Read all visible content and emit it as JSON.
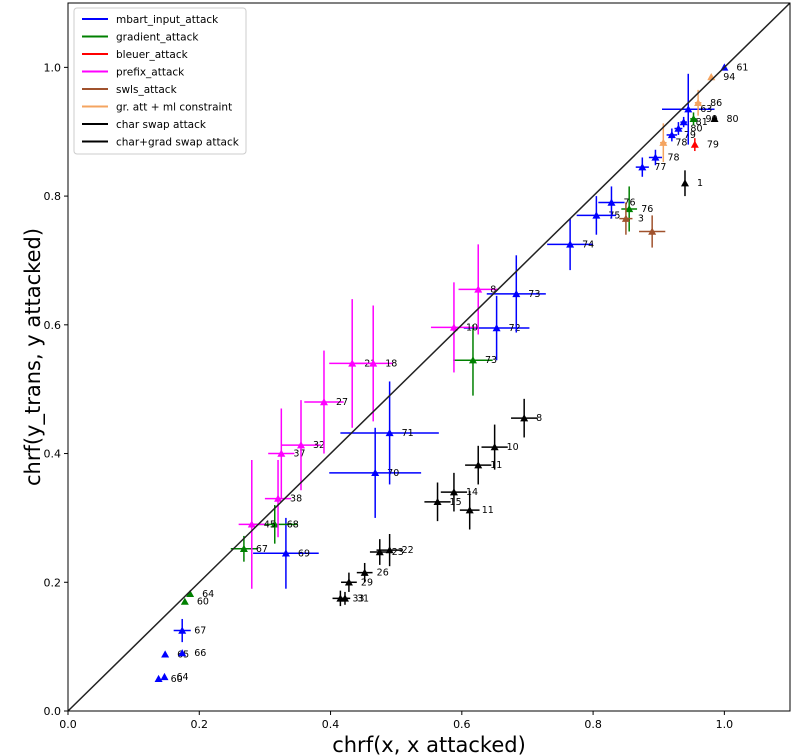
{
  "chart_data": {
    "type": "scatter",
    "title": "",
    "xlabel": "chrf(x, x attacked)",
    "ylabel": "chrf(y_trans, y attacked)",
    "xlim": [
      0.0,
      1.1
    ],
    "ylim": [
      0.0,
      1.1
    ],
    "xticks": [
      0.0,
      0.2,
      0.4,
      0.6,
      0.8,
      1.0
    ],
    "yticks": [
      0.0,
      0.2,
      0.4,
      0.6,
      0.8,
      1.0
    ],
    "xtick_labels": [
      "0.0",
      "0.2",
      "0.4",
      "0.6",
      "0.8",
      "1.0"
    ],
    "ytick_labels": [
      "0.0",
      "0.2",
      "0.4",
      "0.6",
      "0.8",
      "1.0"
    ],
    "diagonal": {
      "from": [
        0,
        0
      ],
      "to": [
        1.1,
        1.1
      ],
      "color": "#222222"
    },
    "legend_position": "top-left",
    "series": [
      {
        "name": "mbart_input_attack",
        "color": "#0000ff",
        "points": [
          {
            "x": 0.138,
            "y": 0.05,
            "xerr": 0.0,
            "yerr": 0.0,
            "label": "60"
          },
          {
            "x": 0.147,
            "y": 0.053,
            "xerr": 0.0,
            "yerr": 0.0,
            "label": "64"
          },
          {
            "x": 0.148,
            "y": 0.088,
            "xerr": 0.0,
            "yerr": 0.0,
            "label": "65"
          },
          {
            "x": 0.174,
            "y": 0.09,
            "xerr": 0.0,
            "yerr": 0.0,
            "label": "66"
          },
          {
            "x": 0.174,
            "y": 0.125,
            "xerr": 0.013,
            "yerr": 0.018,
            "label": "67"
          },
          {
            "x": 0.332,
            "y": 0.245,
            "xerr": 0.05,
            "yerr": 0.055,
            "label": "69"
          },
          {
            "x": 0.468,
            "y": 0.37,
            "xerr": 0.07,
            "yerr": 0.07,
            "label": "70"
          },
          {
            "x": 0.49,
            "y": 0.432,
            "xerr": 0.075,
            "yerr": 0.08,
            "label": "71"
          },
          {
            "x": 0.653,
            "y": 0.595,
            "xerr": 0.05,
            "yerr": 0.05,
            "label": "72"
          },
          {
            "x": 0.683,
            "y": 0.648,
            "xerr": 0.045,
            "yerr": 0.06,
            "label": "73"
          },
          {
            "x": 0.765,
            "y": 0.725,
            "xerr": 0.035,
            "yerr": 0.04,
            "label": "74"
          },
          {
            "x": 0.805,
            "y": 0.77,
            "xerr": 0.03,
            "yerr": 0.03,
            "label": "75"
          },
          {
            "x": 0.828,
            "y": 0.79,
            "xerr": 0.02,
            "yerr": 0.025,
            "label": "76"
          },
          {
            "x": 0.875,
            "y": 0.845,
            "xerr": 0.01,
            "yerr": 0.015,
            "label": "77"
          },
          {
            "x": 0.895,
            "y": 0.86,
            "xerr": 0.01,
            "yerr": 0.012,
            "label": "78"
          },
          {
            "x": 0.92,
            "y": 0.895,
            "xerr": 0.008,
            "yerr": 0.01,
            "label": "79"
          },
          {
            "x": 0.93,
            "y": 0.905,
            "xerr": 0.006,
            "yerr": 0.01,
            "label": "80"
          },
          {
            "x": 0.938,
            "y": 0.915,
            "xerr": 0.005,
            "yerr": 0.008,
            "label": "81"
          },
          {
            "x": 0.945,
            "y": 0.935,
            "xerr": 0.04,
            "yerr": 0.055,
            "label": "63"
          },
          {
            "x": 1.0,
            "y": 1.0,
            "xerr": 0.0,
            "yerr": 0.0,
            "label": "61"
          }
        ]
      },
      {
        "name": "gradient_attack",
        "color": "#008000",
        "points": [
          {
            "x": 0.178,
            "y": 0.17,
            "xerr": 0.0,
            "yerr": 0.0,
            "label": "60"
          },
          {
            "x": 0.186,
            "y": 0.182,
            "xerr": 0.0,
            "yerr": 0.0,
            "label": "64"
          },
          {
            "x": 0.268,
            "y": 0.252,
            "xerr": 0.02,
            "yerr": 0.02,
            "label": "67"
          },
          {
            "x": 0.315,
            "y": 0.29,
            "xerr": 0.035,
            "yerr": 0.03,
            "label": "68"
          },
          {
            "x": 0.617,
            "y": 0.545,
            "xerr": 0.03,
            "yerr": 0.055,
            "label": "73"
          },
          {
            "x": 0.855,
            "y": 0.78,
            "xerr": 0.012,
            "yerr": 0.035,
            "label": "76"
          },
          {
            "x": 0.953,
            "y": 0.92,
            "xerr": 0.005,
            "yerr": 0.01,
            "label": "90"
          }
        ]
      },
      {
        "name": "bleuer_attack",
        "color": "#ff0000",
        "points": [
          {
            "x": 0.955,
            "y": 0.88,
            "xerr": 0.0,
            "yerr": 0.01,
            "label": "79"
          }
        ]
      },
      {
        "name": "prefix_attack",
        "color": "#ff00ff",
        "points": [
          {
            "x": 0.28,
            "y": 0.29,
            "xerr": 0.02,
            "yerr": 0.1,
            "label": "45"
          },
          {
            "x": 0.32,
            "y": 0.33,
            "xerr": 0.02,
            "yerr": 0.06,
            "label": "38"
          },
          {
            "x": 0.325,
            "y": 0.4,
            "xerr": 0.02,
            "yerr": 0.07,
            "label": "37"
          },
          {
            "x": 0.355,
            "y": 0.413,
            "xerr": 0.03,
            "yerr": 0.07,
            "label": "32"
          },
          {
            "x": 0.39,
            "y": 0.48,
            "xerr": 0.03,
            "yerr": 0.08,
            "label": "27"
          },
          {
            "x": 0.433,
            "y": 0.54,
            "xerr": 0.035,
            "yerr": 0.1,
            "label": "21"
          },
          {
            "x": 0.465,
            "y": 0.54,
            "xerr": 0.03,
            "yerr": 0.09,
            "label": "18"
          },
          {
            "x": 0.588,
            "y": 0.596,
            "xerr": 0.035,
            "yerr": 0.07,
            "label": "10"
          },
          {
            "x": 0.625,
            "y": 0.655,
            "xerr": 0.03,
            "yerr": 0.07,
            "label": "8"
          }
        ]
      },
      {
        "name": "swls_attack",
        "color": "#a0522d",
        "points": [
          {
            "x": 0.85,
            "y": 0.765,
            "xerr": 0.01,
            "yerr": 0.025,
            "label": "3"
          },
          {
            "x": 0.89,
            "y": 0.745,
            "xerr": 0.02,
            "yerr": 0.025,
            "label": ""
          }
        ]
      },
      {
        "name": "gr. att + ml constraint",
        "color": "#f4a460",
        "points": [
          {
            "x": 0.907,
            "y": 0.883,
            "xerr": 0.005,
            "yerr": 0.03,
            "label": "78"
          },
          {
            "x": 0.96,
            "y": 0.945,
            "xerr": 0.005,
            "yerr": 0.02,
            "label": "86"
          },
          {
            "x": 0.98,
            "y": 0.985,
            "xerr": 0.0,
            "yerr": 0.0,
            "label": "94"
          }
        ]
      },
      {
        "name": "char swap attack",
        "color": "#000000",
        "points": [
          {
            "x": 0.415,
            "y": 0.175,
            "xerr": 0.012,
            "yerr": 0.012,
            "label": "33"
          },
          {
            "x": 0.422,
            "y": 0.175,
            "xerr": 0.008,
            "yerr": 0.01,
            "label": "31"
          },
          {
            "x": 0.428,
            "y": 0.2,
            "xerr": 0.012,
            "yerr": 0.015,
            "label": "29"
          },
          {
            "x": 0.452,
            "y": 0.215,
            "xerr": 0.012,
            "yerr": 0.015,
            "label": "26"
          },
          {
            "x": 0.475,
            "y": 0.247,
            "xerr": 0.015,
            "yerr": 0.02,
            "label": "23"
          },
          {
            "x": 0.49,
            "y": 0.25,
            "xerr": 0.02,
            "yerr": 0.025,
            "label": "22"
          },
          {
            "x": 0.563,
            "y": 0.325,
            "xerr": 0.02,
            "yerr": 0.03,
            "label": "15"
          },
          {
            "x": 0.588,
            "y": 0.34,
            "xerr": 0.02,
            "yerr": 0.03,
            "label": "14"
          },
          {
            "x": 0.612,
            "y": 0.312,
            "xerr": 0.015,
            "yerr": 0.03,
            "label": "11"
          },
          {
            "x": 0.625,
            "y": 0.382,
            "xerr": 0.02,
            "yerr": 0.03,
            "label": "11"
          },
          {
            "x": 0.65,
            "y": 0.41,
            "xerr": 0.02,
            "yerr": 0.035,
            "label": "10"
          },
          {
            "x": 0.695,
            "y": 0.455,
            "xerr": 0.02,
            "yerr": 0.03,
            "label": "8"
          },
          {
            "x": 0.94,
            "y": 0.82,
            "xerr": 0.0,
            "yerr": 0.02,
            "label": "1"
          },
          {
            "x": 0.985,
            "y": 0.92,
            "xerr": 0.004,
            "yerr": 0.004,
            "label": "80"
          }
        ]
      },
      {
        "name": "char+grad swap attack",
        "color": "#000000",
        "points": []
      }
    ]
  }
}
